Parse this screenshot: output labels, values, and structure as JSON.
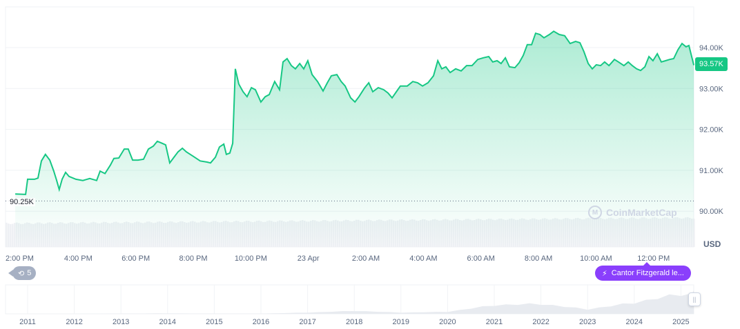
{
  "chart_data": {
    "type": "area",
    "title": "",
    "currency": "USD",
    "y_ticks": [
      "94.00K",
      "93.00K",
      "92.00K",
      "91.00K",
      "90.00K"
    ],
    "y_tick_values": [
      94,
      93,
      92,
      91,
      90
    ],
    "ylim": [
      89.7,
      94.7
    ],
    "x_ticks": [
      "2:00 PM",
      "4:00 PM",
      "6:00 PM",
      "8:00 PM",
      "10:00 PM",
      "23 Apr",
      "2:00 AM",
      "4:00 AM",
      "6:00 AM",
      "8:00 AM",
      "10:00 AM",
      "12:00 PM"
    ],
    "x_tick_hours": [
      0,
      2,
      4,
      6,
      8,
      10,
      12,
      14,
      16,
      18,
      20,
      22
    ],
    "x_unit": "hours since 2:00 PM",
    "y_unit": "thousand USD",
    "current_price_label": "93.57K",
    "low_label": "90.25K",
    "low_value": 90.25,
    "line_color": "#16c784",
    "series": [
      [
        -0.19,
        90.42
      ],
      [
        0.17,
        90.41
      ],
      [
        0.24,
        90.78
      ],
      [
        0.48,
        90.78
      ],
      [
        0.6,
        90.81
      ],
      [
        0.72,
        91.23
      ],
      [
        0.86,
        91.39
      ],
      [
        1.01,
        91.25
      ],
      [
        1.15,
        90.98
      ],
      [
        1.25,
        90.75
      ],
      [
        1.34,
        90.53
      ],
      [
        1.44,
        90.78
      ],
      [
        1.56,
        90.95
      ],
      [
        1.68,
        90.85
      ],
      [
        1.92,
        90.78
      ],
      [
        2.16,
        90.75
      ],
      [
        2.4,
        90.8
      ],
      [
        2.64,
        90.75
      ],
      [
        2.76,
        90.98
      ],
      [
        2.93,
        90.92
      ],
      [
        3.12,
        91.13
      ],
      [
        3.24,
        91.29
      ],
      [
        3.41,
        91.3
      ],
      [
        3.6,
        91.52
      ],
      [
        3.74,
        91.52
      ],
      [
        3.89,
        91.25
      ],
      [
        4.08,
        91.25
      ],
      [
        4.27,
        91.27
      ],
      [
        4.44,
        91.52
      ],
      [
        4.61,
        91.59
      ],
      [
        4.75,
        91.71
      ],
      [
        4.92,
        91.66
      ],
      [
        5.04,
        91.62
      ],
      [
        5.18,
        91.18
      ],
      [
        5.33,
        91.32
      ],
      [
        5.47,
        91.45
      ],
      [
        5.62,
        91.54
      ],
      [
        5.76,
        91.45
      ],
      [
        6.0,
        91.34
      ],
      [
        6.24,
        91.23
      ],
      [
        6.48,
        91.2
      ],
      [
        6.6,
        91.18
      ],
      [
        6.77,
        91.32
      ],
      [
        6.91,
        91.57
      ],
      [
        7.06,
        91.64
      ],
      [
        7.15,
        91.39
      ],
      [
        7.27,
        91.42
      ],
      [
        7.37,
        91.66
      ],
      [
        7.46,
        93.48
      ],
      [
        7.58,
        93.11
      ],
      [
        7.73,
        92.92
      ],
      [
        7.87,
        92.8
      ],
      [
        8.02,
        93.02
      ],
      [
        8.16,
        92.97
      ],
      [
        8.35,
        92.67
      ],
      [
        8.5,
        92.8
      ],
      [
        8.64,
        92.85
      ],
      [
        8.83,
        93.17
      ],
      [
        9.0,
        92.97
      ],
      [
        9.12,
        93.65
      ],
      [
        9.26,
        93.73
      ],
      [
        9.41,
        93.56
      ],
      [
        9.55,
        93.48
      ],
      [
        9.7,
        93.61
      ],
      [
        9.84,
        93.48
      ],
      [
        9.98,
        93.68
      ],
      [
        10.13,
        93.34
      ],
      [
        10.32,
        93.17
      ],
      [
        10.51,
        92.94
      ],
      [
        10.66,
        93.14
      ],
      [
        10.8,
        93.31
      ],
      [
        10.99,
        93.34
      ],
      [
        11.14,
        93.17
      ],
      [
        11.28,
        93.06
      ],
      [
        11.47,
        92.77
      ],
      [
        11.62,
        92.67
      ],
      [
        11.76,
        92.8
      ],
      [
        11.95,
        93.01
      ],
      [
        12.1,
        93.14
      ],
      [
        12.24,
        92.92
      ],
      [
        12.43,
        93.02
      ],
      [
        12.62,
        92.97
      ],
      [
        12.77,
        92.89
      ],
      [
        12.91,
        92.77
      ],
      [
        13.06,
        92.92
      ],
      [
        13.2,
        93.06
      ],
      [
        13.44,
        93.06
      ],
      [
        13.63,
        93.17
      ],
      [
        13.8,
        93.14
      ],
      [
        13.97,
        93.06
      ],
      [
        14.16,
        93.14
      ],
      [
        14.35,
        93.31
      ],
      [
        14.5,
        93.68
      ],
      [
        14.64,
        93.48
      ],
      [
        14.78,
        93.53
      ],
      [
        14.93,
        93.39
      ],
      [
        15.12,
        93.48
      ],
      [
        15.31,
        93.43
      ],
      [
        15.5,
        93.56
      ],
      [
        15.69,
        93.56
      ],
      [
        15.89,
        93.71
      ],
      [
        16.08,
        93.75
      ],
      [
        16.27,
        93.78
      ],
      [
        16.41,
        93.65
      ],
      [
        16.56,
        93.68
      ],
      [
        16.7,
        93.61
      ],
      [
        16.85,
        93.75
      ],
      [
        16.99,
        93.53
      ],
      [
        17.18,
        93.51
      ],
      [
        17.33,
        93.63
      ],
      [
        17.47,
        93.81
      ],
      [
        17.61,
        94.07
      ],
      [
        17.76,
        94.07
      ],
      [
        17.9,
        94.35
      ],
      [
        18.05,
        94.32
      ],
      [
        18.19,
        94.24
      ],
      [
        18.38,
        94.32
      ],
      [
        18.53,
        94.4
      ],
      [
        18.72,
        94.32
      ],
      [
        18.91,
        94.29
      ],
      [
        19.1,
        94.1
      ],
      [
        19.29,
        94.15
      ],
      [
        19.44,
        94.12
      ],
      [
        19.58,
        93.9
      ],
      [
        19.73,
        93.61
      ],
      [
        19.87,
        93.48
      ],
      [
        20.01,
        93.58
      ],
      [
        20.16,
        93.56
      ],
      [
        20.3,
        93.65
      ],
      [
        20.45,
        93.56
      ],
      [
        20.64,
        93.71
      ],
      [
        20.78,
        93.65
      ],
      [
        20.97,
        93.56
      ],
      [
        21.12,
        93.65
      ],
      [
        21.26,
        93.56
      ],
      [
        21.41,
        93.48
      ],
      [
        21.55,
        93.44
      ],
      [
        21.7,
        93.53
      ],
      [
        21.84,
        93.78
      ],
      [
        21.98,
        93.68
      ],
      [
        22.13,
        93.85
      ],
      [
        22.27,
        93.65
      ],
      [
        22.42,
        93.68
      ],
      [
        22.56,
        93.71
      ],
      [
        22.7,
        93.73
      ],
      [
        22.85,
        93.95
      ],
      [
        22.99,
        94.1
      ],
      [
        23.13,
        94.02
      ],
      [
        23.23,
        94.05
      ],
      [
        23.4,
        93.57
      ]
    ],
    "watermark": "CoinMarketCap",
    "navigator": {
      "years": [
        "2011",
        "2012",
        "2013",
        "2014",
        "2015",
        "2016",
        "2017",
        "2018",
        "2019",
        "2020",
        "2021",
        "2022",
        "2023",
        "2024",
        "2025"
      ],
      "relative_values": [
        0,
        0,
        0.01,
        0.02,
        0.01,
        0.01,
        0.05,
        0.12,
        0.05,
        0.08,
        0.35,
        0.4,
        0.18,
        0.45,
        0.8
      ]
    }
  },
  "controls": {
    "history_count": "5",
    "news_label": "Cantor Fitzgerald le..."
  }
}
